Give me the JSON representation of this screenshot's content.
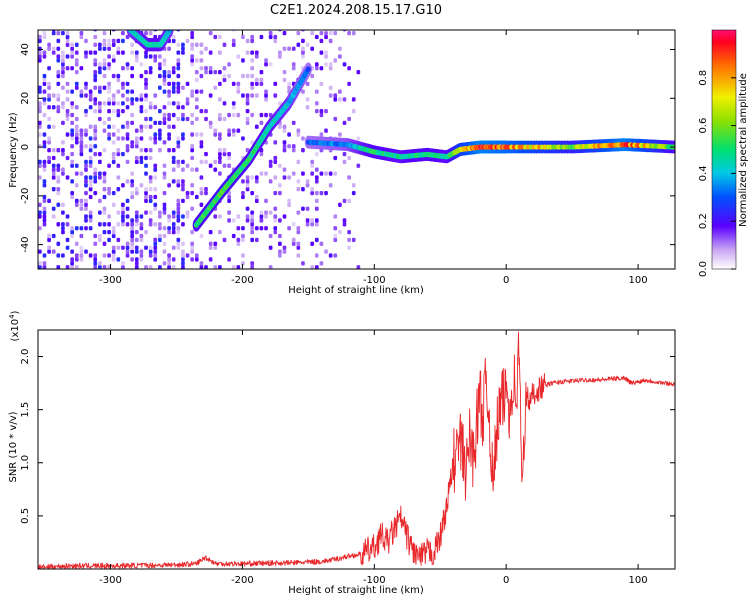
{
  "title": "C2E1.2024.208.15.17.G10",
  "chart_data": [
    {
      "type": "heatmap",
      "xlabel": "Height of straight line (km)",
      "ylabel": "Frequency (Hz)",
      "xlim": [
        -355,
        128
      ],
      "ylim": [
        -50,
        48
      ],
      "xticks": [
        -300,
        -200,
        -100,
        0,
        100
      ],
      "xtick_labels": [
        "-300",
        "-200",
        "-100",
        "0",
        "100"
      ],
      "yticks": [
        -40,
        -20,
        0,
        20,
        40
      ],
      "ytick_labels": [
        "-40",
        "-20",
        "0",
        "20",
        "40"
      ],
      "colorbar": {
        "label": "Normalized spectral amplitude",
        "range": [
          0,
          1
        ],
        "ticks": [
          0.0,
          0.2,
          0.4,
          0.6,
          0.8
        ],
        "tick_labels": [
          "0.0",
          "0.2",
          "0.4",
          "0.6",
          "0.8"
        ]
      },
      "features": [
        {
          "name": "carrier_track",
          "points": [
            [
              -150,
              2
            ],
            [
              -120,
              1
            ],
            [
              -100,
              -2
            ],
            [
              -80,
              -4
            ],
            [
              -60,
              -3
            ],
            [
              -45,
              -4
            ],
            [
              -35,
              -1
            ],
            [
              -20,
              0
            ],
            [
              0,
              0
            ],
            [
              50,
              0
            ],
            [
              90,
              1
            ],
            [
              128,
              0
            ]
          ],
          "amplitude": [
            0.3,
            0.35,
            0.5,
            0.45,
            0.5,
            0.45,
            0.7,
            0.9,
            0.85,
            0.6,
            0.9,
            0.5
          ]
        },
        {
          "name": "diagonal_streak",
          "points": [
            [
              -235,
              -32
            ],
            [
              -215,
              -18
            ],
            [
              -195,
              -5
            ],
            [
              -180,
              8
            ],
            [
              -165,
              18
            ],
            [
              -150,
              32
            ]
          ],
          "amplitude": [
            0.5,
            0.55,
            0.5,
            0.45,
            0.4,
            0.3
          ]
        },
        {
          "name": "upper_arc",
          "points": [
            [
              -285,
              48
            ],
            [
              -272,
              42
            ],
            [
              -262,
              42
            ],
            [
              -255,
              48
            ]
          ],
          "amplitude": [
            0.4,
            0.45,
            0.45,
            0.4
          ]
        }
      ]
    },
    {
      "type": "line",
      "xlabel": "Height of straight line (km)",
      "ylabel": "SNR (10 * v/v)",
      "y_multiplier": "(x10",
      "y_multiplier_exp": "4",
      "y_multiplier_close": ")",
      "xlim": [
        -355,
        128
      ],
      "ylim": [
        0,
        22500
      ],
      "xticks": [
        -300,
        -200,
        -100,
        0,
        100
      ],
      "xtick_labels": [
        "-300",
        "-200",
        "-100",
        "0",
        "100"
      ],
      "yticks": [
        5000,
        10000,
        15000,
        20000
      ],
      "ytick_labels": [
        "0.5",
        "1.0",
        "1.5",
        "2.0"
      ],
      "series": [
        {
          "color": "#e8262a",
          "x": [
            -355,
            -330,
            -300,
            -270,
            -250,
            -235,
            -228,
            -220,
            -200,
            -180,
            -160,
            -140,
            -130,
            -120,
            -110,
            -100,
            -95,
            -90,
            -85,
            -80,
            -75,
            -70,
            -65,
            -60,
            -55,
            -50,
            -45,
            -40,
            -35,
            -30,
            -28,
            -25,
            -20,
            -18,
            -15,
            -12,
            -10,
            -8,
            -5,
            -3,
            0,
            3,
            5,
            8,
            10,
            12,
            15,
            18,
            20,
            25,
            30,
            35,
            40,
            50,
            60,
            70,
            80,
            90,
            95,
            100,
            105,
            110,
            120,
            128
          ],
          "y": [
            150,
            300,
            300,
            350,
            400,
            500,
            1100,
            500,
            500,
            550,
            600,
            700,
            900,
            1200,
            1400,
            2000,
            3200,
            2500,
            3700,
            4800,
            3000,
            1600,
            1000,
            1600,
            1500,
            3000,
            6000,
            10000,
            12000,
            9000,
            12500,
            10500,
            16500,
            14500,
            17500,
            13000,
            7000,
            12000,
            15000,
            15500,
            17000,
            15000,
            18000,
            16500,
            21500,
            6000,
            16500,
            15500,
            16500,
            17000,
            17300,
            17500,
            17600,
            17700,
            17800,
            17800,
            17900,
            18000,
            17500,
            17600,
            17800,
            17700,
            17500,
            17400
          ]
        }
      ]
    }
  ]
}
